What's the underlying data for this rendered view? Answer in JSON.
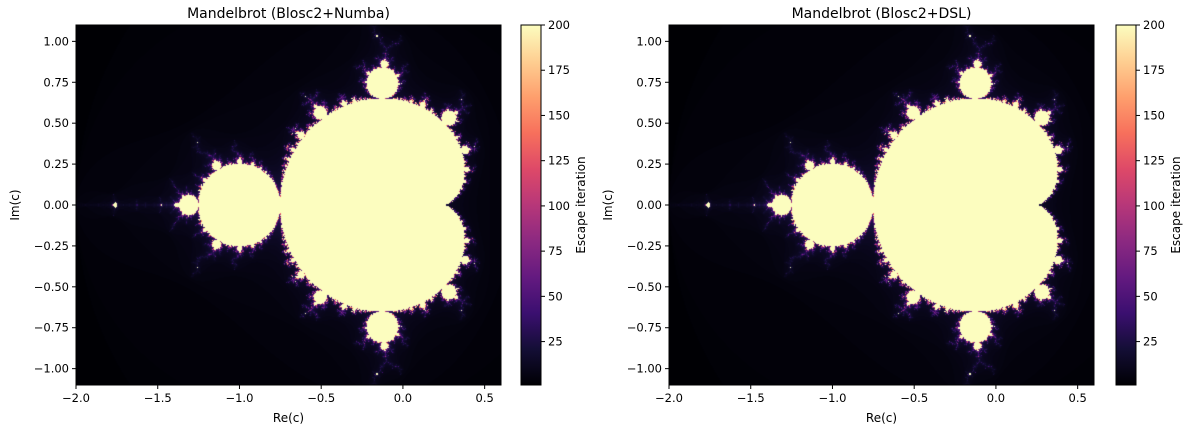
{
  "chart_data": [
    {
      "type": "heatmap",
      "title": "Mandelbrot (Blosc2+Numba)",
      "xlabel": "Re(c)",
      "ylabel": "Im(c)",
      "xlim": [
        -2.0,
        0.6
      ],
      "ylim": [
        -1.1,
        1.1
      ],
      "xticks": [
        -2.0,
        -1.5,
        -1.0,
        -0.5,
        0.0,
        0.5
      ],
      "xtick_labels": [
        "−2.0",
        "−1.5",
        "−1.0",
        "−0.5",
        "0.0",
        "0.5"
      ],
      "yticks": [
        1.0,
        0.75,
        0.5,
        0.25,
        0.0,
        -0.25,
        -0.5,
        -0.75,
        -1.0
      ],
      "ytick_labels": [
        "1.00",
        "0.75",
        "0.50",
        "0.25",
        "0.00",
        "−0.25",
        "−0.50",
        "−0.75",
        "−1.00"
      ],
      "max_iter": 200,
      "colormap": "magma",
      "colorbar": {
        "label": "Escape iteration",
        "range": [
          1,
          200
        ],
        "ticks": [
          25,
          50,
          75,
          100,
          125,
          150,
          175,
          200
        ],
        "tick_labels": [
          "25",
          "50",
          "75",
          "100",
          "125",
          "150",
          "175",
          "200"
        ]
      }
    },
    {
      "type": "heatmap",
      "title": "Mandelbrot (Blosc2+DSL)",
      "xlabel": "Re(c)",
      "ylabel": "Im(c)",
      "xlim": [
        -2.0,
        0.6
      ],
      "ylim": [
        -1.1,
        1.1
      ],
      "xticks": [
        -2.0,
        -1.5,
        -1.0,
        -0.5,
        0.0,
        0.5
      ],
      "xtick_labels": [
        "−2.0",
        "−1.5",
        "−1.0",
        "−0.5",
        "0.0",
        "0.5"
      ],
      "yticks": [
        1.0,
        0.75,
        0.5,
        0.25,
        0.0,
        -0.25,
        -0.5,
        -0.75,
        -1.0
      ],
      "ytick_labels": [
        "1.00",
        "0.75",
        "0.50",
        "0.25",
        "0.00",
        "−0.25",
        "−0.50",
        "−0.75",
        "−1.00"
      ],
      "max_iter": 200,
      "colormap": "magma",
      "colorbar": {
        "label": "Escape iteration",
        "range": [
          1,
          200
        ],
        "ticks": [
          25,
          50,
          75,
          100,
          125,
          150,
          175,
          200
        ],
        "tick_labels": [
          "25",
          "50",
          "75",
          "100",
          "125",
          "150",
          "175",
          "200"
        ]
      }
    }
  ]
}
